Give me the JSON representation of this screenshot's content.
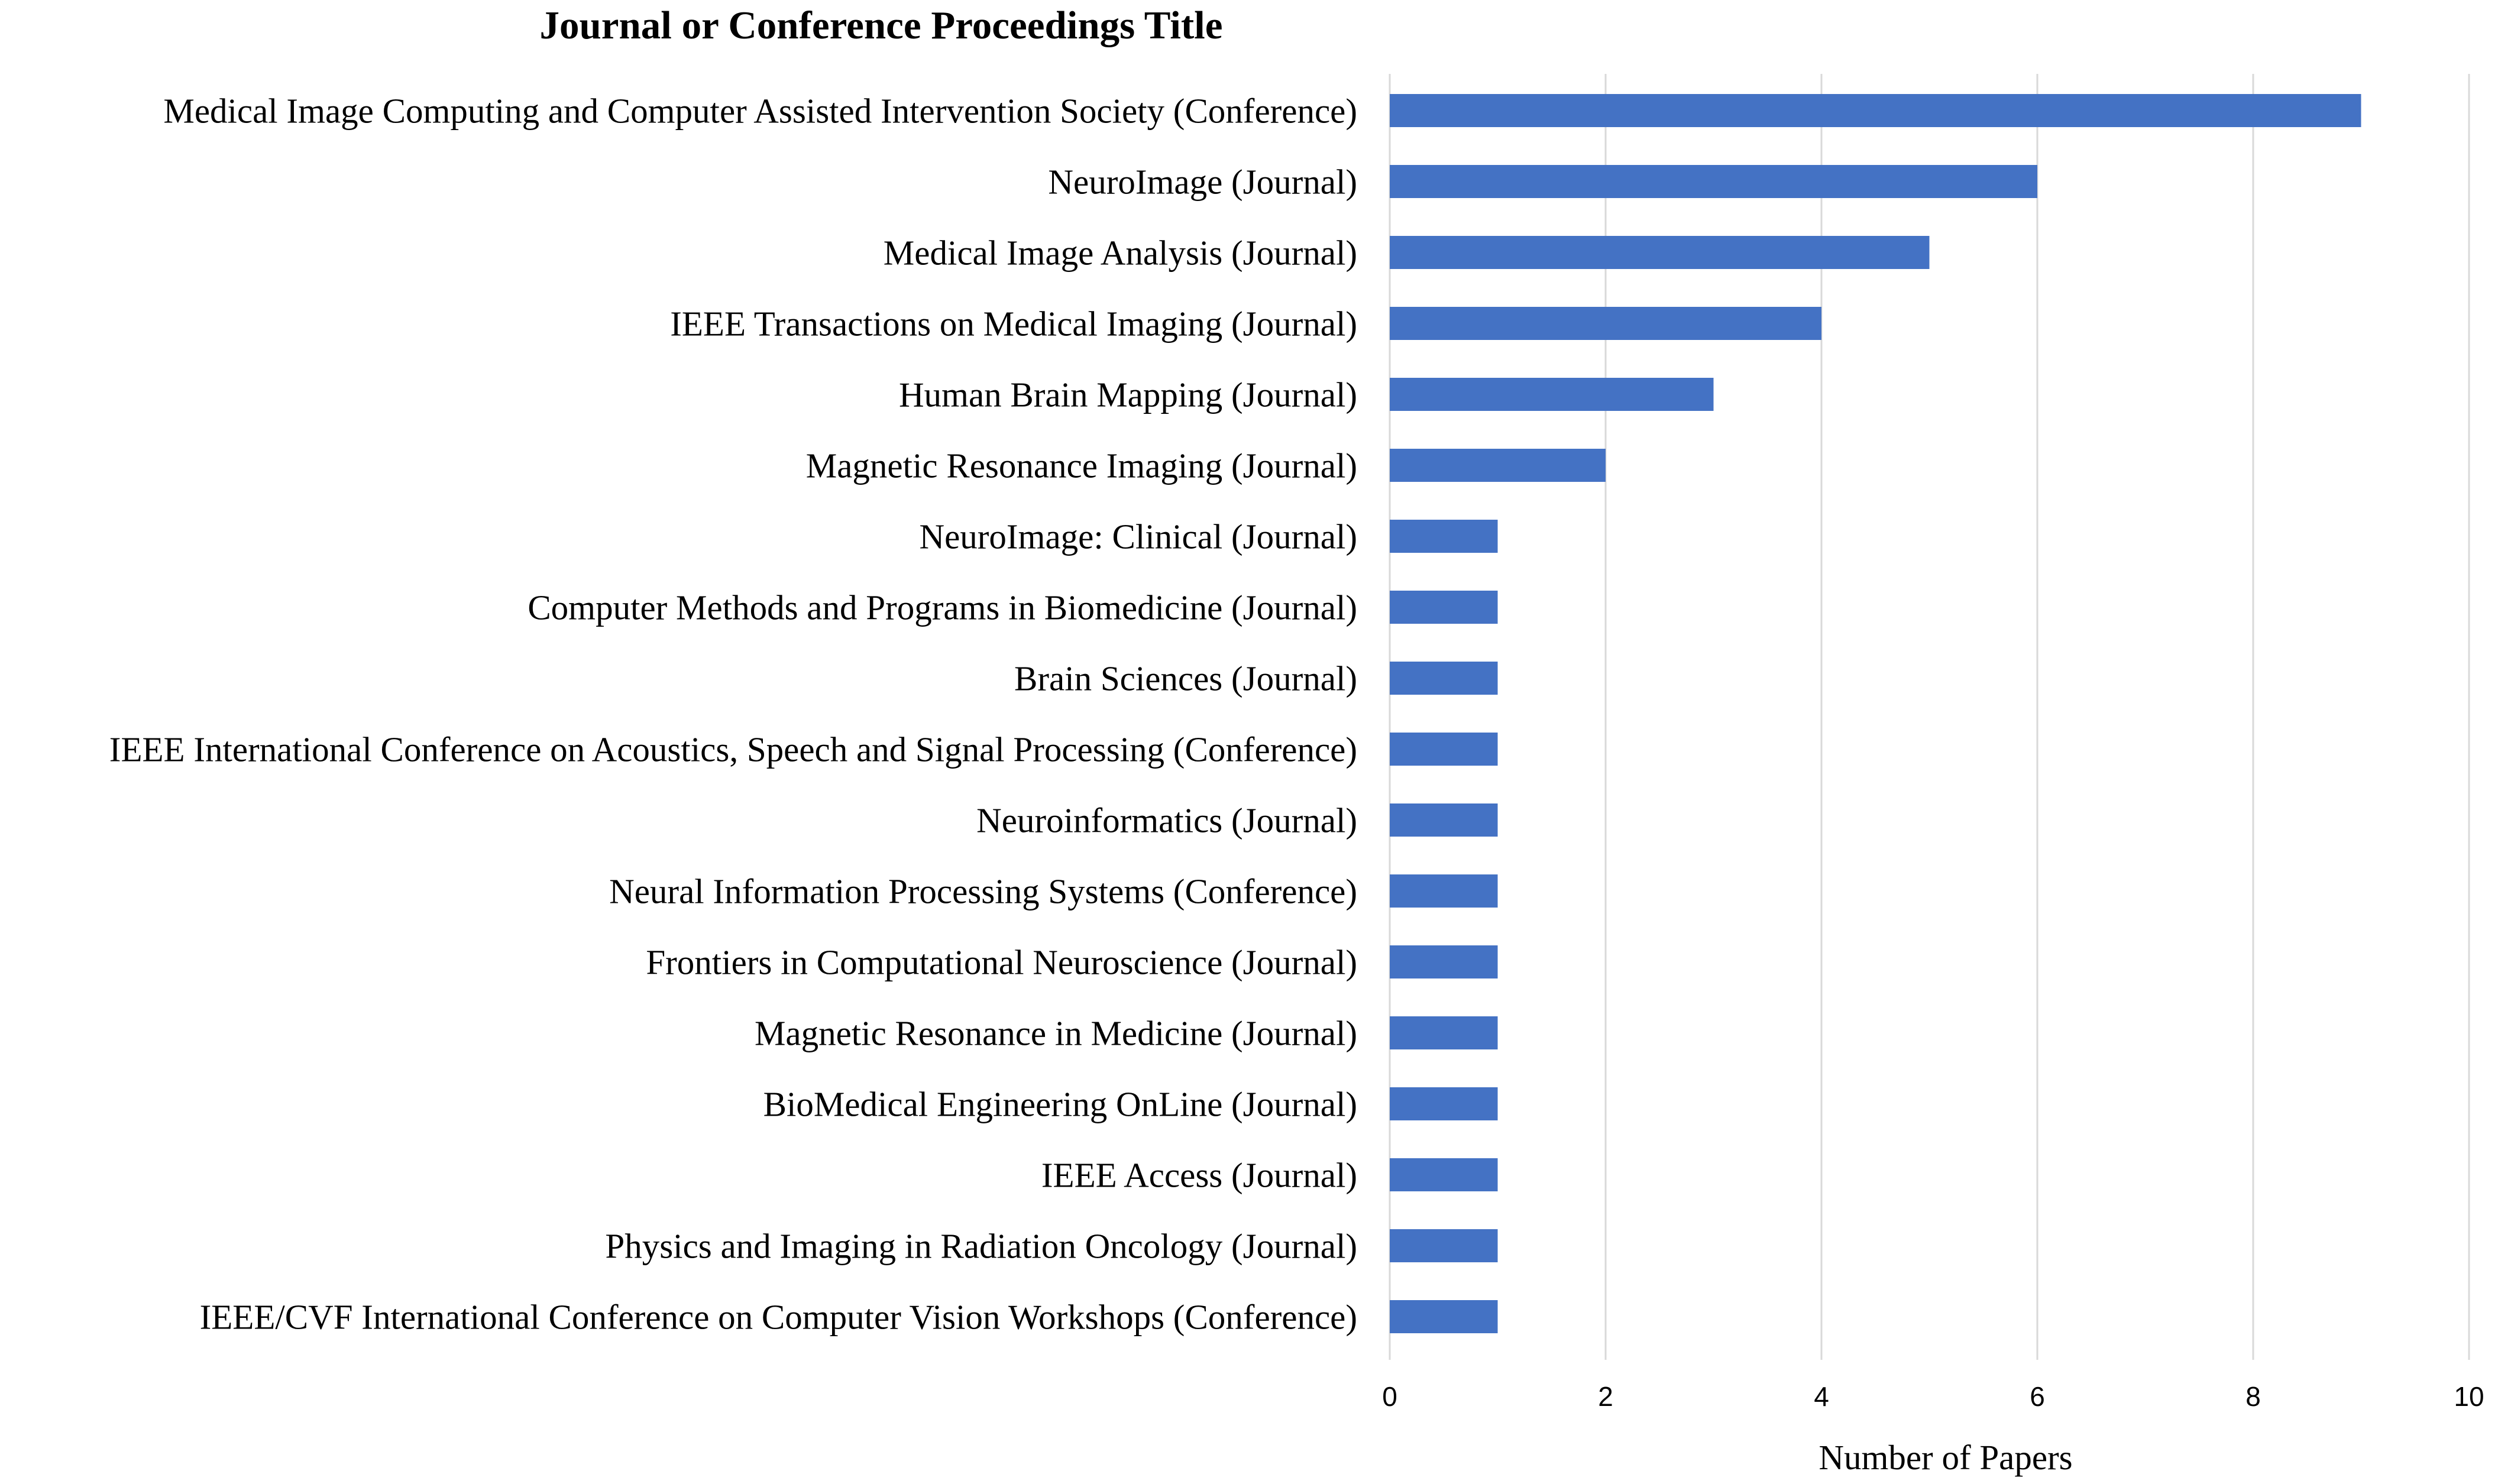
{
  "chart_data": {
    "type": "bar",
    "orientation": "horizontal",
    "title": "Journal or Conference Proceedings Title",
    "xlabel": "Number of Papers",
    "ylabel": "",
    "xlim": [
      0,
      10
    ],
    "xticks": [
      "0",
      "2",
      "4",
      "6",
      "8",
      "10"
    ],
    "grid": true,
    "bar_color": "#4472c4",
    "categories": [
      "Medical Image Computing and Computer Assisted Intervention Society (Conference)",
      "NeuroImage (Journal)",
      "Medical Image Analysis (Journal)",
      "IEEE Transactions on Medical Imaging (Journal)",
      "Human Brain Mapping (Journal)",
      "Magnetic Resonance Imaging (Journal)",
      "NeuroImage: Clinical (Journal)",
      "Computer Methods and Programs in Biomedicine (Journal)",
      "Brain Sciences (Journal)",
      "IEEE International Conference on Acoustics, Speech and Signal Processing (Conference)",
      "Neuroinformatics (Journal)",
      "Neural Information Processing Systems (Conference)",
      "Frontiers in Computational Neuroscience (Journal)",
      "Magnetic Resonance in Medicine (Journal)",
      "BioMedical Engineering OnLine (Journal)",
      "IEEE Access (Journal)",
      "Physics and Imaging in Radiation Oncology (Journal)",
      "IEEE/CVF International Conference on Computer Vision Workshops (Conference)"
    ],
    "values": [
      9,
      6,
      5,
      4,
      3,
      2,
      1,
      1,
      1,
      1,
      1,
      1,
      1,
      1,
      1,
      1,
      1,
      1
    ]
  }
}
